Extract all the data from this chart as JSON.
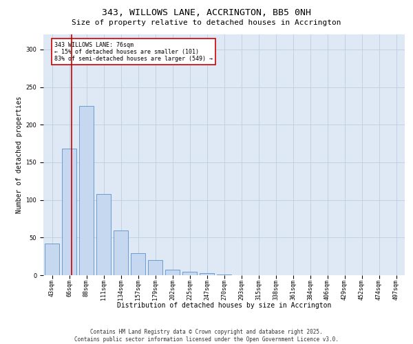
{
  "title": "343, WILLOWS LANE, ACCRINGTON, BB5 0NH",
  "subtitle": "Size of property relative to detached houses in Accrington",
  "xlabel": "Distribution of detached houses by size in Accrington",
  "ylabel": "Number of detached properties",
  "categories": [
    "43sqm",
    "66sqm",
    "88sqm",
    "111sqm",
    "134sqm",
    "157sqm",
    "179sqm",
    "202sqm",
    "225sqm",
    "247sqm",
    "270sqm",
    "293sqm",
    "315sqm",
    "338sqm",
    "361sqm",
    "384sqm",
    "406sqm",
    "429sqm",
    "452sqm",
    "474sqm",
    "497sqm"
  ],
  "values": [
    42,
    168,
    225,
    108,
    59,
    29,
    20,
    7,
    5,
    3,
    1,
    0,
    0,
    0,
    0,
    0,
    0,
    0,
    0,
    0,
    0
  ],
  "bar_color": "#c5d8ef",
  "bar_edge_color": "#5b8fc9",
  "red_line_x": 1.13,
  "annotation_text": "343 WILLOWS LANE: 76sqm\n← 15% of detached houses are smaller (101)\n83% of semi-detached houses are larger (549) →",
  "annotation_box_color": "#ffffff",
  "annotation_box_edge_color": "#cc0000",
  "ylim": [
    0,
    320
  ],
  "yticks": [
    0,
    50,
    100,
    150,
    200,
    250,
    300
  ],
  "background_color": "#dfe8f5",
  "footer_line1": "Contains HM Land Registry data © Crown copyright and database right 2025.",
  "footer_line2": "Contains public sector information licensed under the Open Government Licence v3.0.",
  "title_fontsize": 9.5,
  "subtitle_fontsize": 8,
  "xlabel_fontsize": 7,
  "ylabel_fontsize": 7,
  "tick_fontsize": 6,
  "annotation_fontsize": 6,
  "footer_fontsize": 5.5
}
